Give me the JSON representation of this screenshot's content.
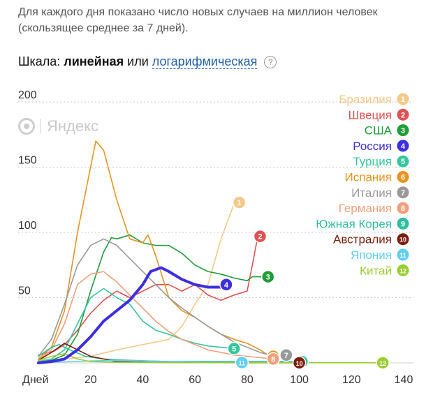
{
  "description": "Для каждого дня показано число новых случаев на миллион человек (скользящее среднее за 7 дней).",
  "scale": {
    "label": "Шкала:",
    "linear": "линейная",
    "or": "или",
    "log": "логарифмическая",
    "help": "?"
  },
  "watermark": "Яндекс",
  "chart_data": {
    "type": "line",
    "xlabel": "Дней",
    "ylabel": "",
    "xlim": [
      0,
      140
    ],
    "ylim": [
      0,
      200
    ],
    "x_ticks": [
      20,
      40,
      60,
      80,
      100,
      120,
      140
    ],
    "y_ticks": [
      50,
      100,
      150,
      200
    ],
    "grid": true,
    "legend_position": "top-right",
    "series": [
      {
        "name": "Бразилия",
        "number": "1",
        "color": "#f5c98a",
        "points": [
          [
            0,
            2
          ],
          [
            10,
            3
          ],
          [
            20,
            5
          ],
          [
            30,
            10
          ],
          [
            40,
            14
          ],
          [
            50,
            18
          ],
          [
            55,
            28
          ],
          [
            60,
            45
          ],
          [
            65,
            60
          ],
          [
            70,
            95
          ],
          [
            75,
            122
          ],
          [
            77,
            123
          ]
        ]
      },
      {
        "name": "Швеция",
        "number": "2",
        "color": "#e05252",
        "points": [
          [
            0,
            6
          ],
          [
            6,
            9
          ],
          [
            10,
            14
          ],
          [
            15,
            25
          ],
          [
            20,
            38
          ],
          [
            25,
            48
          ],
          [
            30,
            55
          ],
          [
            35,
            50
          ],
          [
            40,
            55
          ],
          [
            45,
            60
          ],
          [
            50,
            60
          ],
          [
            55,
            55
          ],
          [
            60,
            60
          ],
          [
            65,
            52
          ],
          [
            70,
            48
          ],
          [
            75,
            52
          ],
          [
            80,
            55
          ],
          [
            82,
            75
          ],
          [
            84,
            96
          ],
          [
            85,
            97
          ]
        ]
      },
      {
        "name": "США",
        "number": "3",
        "color": "#1f9e3a",
        "points": [
          [
            0,
            1
          ],
          [
            5,
            2
          ],
          [
            10,
            6
          ],
          [
            15,
            22
          ],
          [
            20,
            55
          ],
          [
            25,
            85
          ],
          [
            28,
            96
          ],
          [
            30,
            95
          ],
          [
            35,
            98
          ],
          [
            40,
            92
          ],
          [
            45,
            90
          ],
          [
            50,
            90
          ],
          [
            55,
            84
          ],
          [
            60,
            75
          ],
          [
            65,
            70
          ],
          [
            70,
            68
          ],
          [
            75,
            65
          ],
          [
            80,
            63
          ],
          [
            82,
            66
          ],
          [
            88,
            66
          ]
        ]
      },
      {
        "name": "Россия",
        "number": "4",
        "color": "#3d2ee0",
        "points": [
          [
            0,
            0
          ],
          [
            5,
            1
          ],
          [
            10,
            3
          ],
          [
            15,
            10
          ],
          [
            20,
            20
          ],
          [
            25,
            32
          ],
          [
            30,
            40
          ],
          [
            35,
            48
          ],
          [
            40,
            60
          ],
          [
            43,
            70
          ],
          [
            47,
            73
          ],
          [
            50,
            70
          ],
          [
            55,
            64
          ],
          [
            60,
            60
          ],
          [
            65,
            58
          ],
          [
            70,
            58
          ],
          [
            72,
            60
          ]
        ]
      },
      {
        "name": "Турция",
        "number": "5",
        "color": "#35c79e",
        "points": [
          [
            0,
            1
          ],
          [
            5,
            3
          ],
          [
            10,
            10
          ],
          [
            15,
            30
          ],
          [
            20,
            50
          ],
          [
            25,
            57
          ],
          [
            30,
            50
          ],
          [
            35,
            45
          ],
          [
            40,
            32
          ],
          [
            45,
            25
          ],
          [
            50,
            22
          ],
          [
            55,
            18
          ],
          [
            60,
            15
          ],
          [
            65,
            13
          ],
          [
            70,
            12
          ],
          [
            75,
            11
          ]
        ]
      },
      {
        "name": "Испания",
        "number": "6",
        "color": "#e89420",
        "points": [
          [
            0,
            3
          ],
          [
            5,
            12
          ],
          [
            10,
            40
          ],
          [
            15,
            100
          ],
          [
            20,
            150
          ],
          [
            22,
            170
          ],
          [
            25,
            163
          ],
          [
            30,
            125
          ],
          [
            35,
            95
          ],
          [
            40,
            92
          ],
          [
            42,
            98
          ],
          [
            45,
            82
          ],
          [
            50,
            50
          ],
          [
            55,
            40
          ],
          [
            60,
            35
          ],
          [
            65,
            28
          ],
          [
            70,
            22
          ],
          [
            75,
            18
          ],
          [
            80,
            15
          ],
          [
            85,
            10
          ],
          [
            88,
            6
          ],
          [
            90,
            5
          ]
        ]
      },
      {
        "name": "Италия",
        "number": "7",
        "color": "#999999",
        "points": [
          [
            0,
            5
          ],
          [
            5,
            18
          ],
          [
            10,
            45
          ],
          [
            15,
            75
          ],
          [
            20,
            90
          ],
          [
            25,
            95
          ],
          [
            30,
            90
          ],
          [
            35,
            80
          ],
          [
            40,
            70
          ],
          [
            45,
            60
          ],
          [
            50,
            50
          ],
          [
            55,
            42
          ],
          [
            60,
            35
          ],
          [
            65,
            28
          ],
          [
            70,
            22
          ],
          [
            75,
            16
          ],
          [
            80,
            12
          ],
          [
            85,
            8
          ],
          [
            90,
            5
          ],
          [
            95,
            6
          ]
        ]
      },
      {
        "name": "Германия",
        "number": "8",
        "color": "#f0a07a",
        "points": [
          [
            0,
            2
          ],
          [
            5,
            10
          ],
          [
            10,
            30
          ],
          [
            15,
            60
          ],
          [
            20,
            68
          ],
          [
            25,
            70
          ],
          [
            30,
            62
          ],
          [
            35,
            52
          ],
          [
            40,
            42
          ],
          [
            45,
            32
          ],
          [
            50,
            24
          ],
          [
            55,
            18
          ],
          [
            60,
            14
          ],
          [
            65,
            10
          ],
          [
            70,
            8
          ],
          [
            75,
            6
          ],
          [
            80,
            5
          ],
          [
            85,
            4
          ],
          [
            90,
            3
          ]
        ]
      },
      {
        "name": "Южная Корея",
        "number": "9",
        "color": "#2fbf9f",
        "points": [
          [
            0,
            5
          ],
          [
            5,
            12
          ],
          [
            8,
            14
          ],
          [
            12,
            10
          ],
          [
            18,
            5
          ],
          [
            25,
            3
          ],
          [
            35,
            2
          ],
          [
            50,
            1
          ],
          [
            70,
            1
          ],
          [
            90,
            1
          ],
          [
            101,
            1
          ]
        ]
      },
      {
        "name": "Австралия",
        "number": "10",
        "color": "#7a1f10",
        "points": [
          [
            0,
            2
          ],
          [
            5,
            8
          ],
          [
            10,
            15
          ],
          [
            15,
            10
          ],
          [
            20,
            5
          ],
          [
            30,
            1
          ],
          [
            45,
            0.4
          ],
          [
            60,
            0.2
          ],
          [
            80,
            0.1
          ],
          [
            100,
            0.1
          ]
        ]
      },
      {
        "name": "Япония",
        "number": "11",
        "color": "#5fd0f0",
        "points": [
          [
            0,
            0.3
          ],
          [
            10,
            0.8
          ],
          [
            20,
            1.5
          ],
          [
            30,
            2
          ],
          [
            40,
            1.5
          ],
          [
            50,
            1
          ],
          [
            60,
            0.5
          ],
          [
            70,
            0.3
          ],
          [
            78,
            0.3
          ]
        ]
      },
      {
        "name": "Китай",
        "number": "12",
        "color": "#9acd32",
        "points": [
          [
            0,
            2
          ],
          [
            5,
            5
          ],
          [
            10,
            7
          ],
          [
            15,
            3
          ],
          [
            20,
            1
          ],
          [
            30,
            0.5
          ],
          [
            50,
            0.2
          ],
          [
            80,
            0.1
          ],
          [
            110,
            0.1
          ],
          [
            132,
            0.1
          ]
        ]
      }
    ]
  }
}
